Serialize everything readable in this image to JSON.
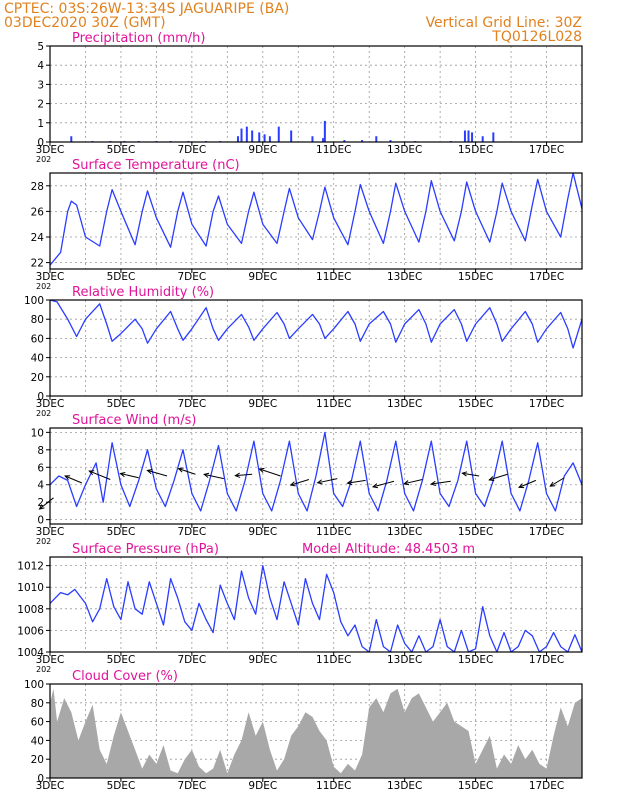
{
  "header": {
    "line1_left": "CPTEC:   03S:26W-13:34S   JAGUARIPE (BA)",
    "line2_left": "03DEC2020 30Z (GMT)",
    "line1_right": "Vertical Grid Line: 30Z",
    "line2_right": "TQ0126L028"
  },
  "colors": {
    "header_orange": "#e0821f",
    "title_magenta": "#e0149a",
    "series_blue": "#2a3dff",
    "cloud_gray": "#a8a8a8",
    "grid_gray": "#9a9a9a"
  },
  "x_axis": {
    "tick_labels": [
      "3DEC",
      "5DEC",
      "7DEC",
      "9DEC",
      "11DEC",
      "13DEC",
      "15DEC",
      "17DEC"
    ],
    "range_days": [
      3,
      18
    ],
    "cropped_year_label": "202"
  },
  "chart_data": [
    {
      "type": "bar",
      "title": "Precipitation (mm/h)",
      "ylim": [
        0,
        5
      ],
      "yticks": [
        "0",
        "1",
        "2",
        "3",
        "4",
        "5"
      ],
      "x": [
        3.6,
        4.2,
        4.7,
        5.1,
        5.5,
        6.0,
        6.4,
        6.9,
        7.4,
        7.8,
        8.3,
        8.4,
        8.55,
        8.7,
        8.9,
        9.05,
        9.2,
        9.45,
        9.8,
        10.4,
        10.7,
        10.75,
        11.3,
        11.8,
        12.2,
        12.6,
        13.3,
        14.3,
        14.7,
        14.8,
        14.9,
        15.2,
        15.5
      ],
      "values": [
        0.3,
        0.05,
        0.05,
        0.05,
        0.05,
        0.05,
        0.05,
        0.05,
        0.05,
        0.05,
        0.3,
        0.7,
        0.8,
        0.6,
        0.5,
        0.4,
        0.3,
        0.8,
        0.6,
        0.3,
        0.2,
        1.1,
        0.1,
        0.1,
        0.3,
        0.1,
        0.05,
        0.05,
        0.6,
        0.6,
        0.5,
        0.3,
        0.5
      ],
      "bar_width_days": 0.03
    },
    {
      "type": "line",
      "title": "Surface Temperature (nC)",
      "ylim": [
        21.5,
        29
      ],
      "yticks": [
        "22",
        "24",
        "26",
        "28"
      ],
      "x": [
        3.0,
        3.3,
        3.5,
        3.6,
        3.75,
        4.0,
        4.4,
        4.6,
        4.75,
        5.0,
        5.4,
        5.6,
        5.75,
        6.0,
        6.4,
        6.6,
        6.75,
        7.0,
        7.4,
        7.6,
        7.75,
        8.0,
        8.4,
        8.6,
        8.75,
        9.0,
        9.4,
        9.6,
        9.75,
        10.0,
        10.4,
        10.6,
        10.75,
        11.0,
        11.4,
        11.6,
        11.75,
        12.0,
        12.4,
        12.6,
        12.75,
        13.0,
        13.4,
        13.6,
        13.75,
        14.0,
        14.4,
        14.6,
        14.75,
        15.0,
        15.4,
        15.6,
        15.75,
        16.0,
        16.4,
        16.6,
        16.75,
        17.0,
        17.4,
        17.6,
        17.75,
        18.0
      ],
      "values": [
        21.8,
        22.8,
        26.0,
        26.8,
        26.5,
        24.0,
        23.3,
        26.0,
        27.7,
        26.0,
        23.4,
        26.0,
        27.6,
        25.5,
        23.2,
        26.0,
        27.5,
        25.0,
        23.3,
        26.0,
        27.2,
        25.0,
        23.5,
        26.0,
        27.5,
        25.0,
        23.5,
        26.0,
        27.8,
        25.5,
        23.8,
        26.0,
        27.9,
        25.5,
        23.4,
        26.0,
        28.1,
        26.0,
        23.5,
        26.0,
        28.2,
        26.0,
        23.6,
        26.0,
        28.4,
        26.0,
        23.7,
        26.0,
        28.3,
        26.0,
        23.6,
        26.0,
        28.2,
        26.0,
        23.7,
        26.5,
        28.5,
        26.0,
        24.0,
        27.0,
        29.0,
        26.2
      ]
    },
    {
      "type": "line",
      "title": "Relative Humidity (%)",
      "ylim": [
        0,
        100
      ],
      "yticks": [
        "0",
        "20",
        "40",
        "60",
        "80",
        "100"
      ],
      "x": [
        3.0,
        3.2,
        3.5,
        3.75,
        4.0,
        4.4,
        4.6,
        4.75,
        5.0,
        5.4,
        5.6,
        5.75,
        6.0,
        6.4,
        6.6,
        6.75,
        7.0,
        7.4,
        7.6,
        7.75,
        8.0,
        8.4,
        8.6,
        8.75,
        9.0,
        9.4,
        9.6,
        9.75,
        10.0,
        10.4,
        10.6,
        10.75,
        11.0,
        11.4,
        11.6,
        11.75,
        12.0,
        12.4,
        12.6,
        12.75,
        13.0,
        13.4,
        13.6,
        13.75,
        14.0,
        14.4,
        14.6,
        14.75,
        15.0,
        15.4,
        15.6,
        15.75,
        16.0,
        16.4,
        16.6,
        16.75,
        17.0,
        17.4,
        17.6,
        17.75,
        18.0
      ],
      "values": [
        100,
        98,
        80,
        62,
        80,
        96,
        75,
        57,
        65,
        80,
        70,
        55,
        70,
        88,
        70,
        58,
        70,
        92,
        70,
        58,
        70,
        85,
        72,
        58,
        70,
        87,
        75,
        60,
        70,
        85,
        75,
        60,
        70,
        88,
        75,
        57,
        75,
        88,
        75,
        56,
        75,
        90,
        75,
        56,
        75,
        90,
        75,
        57,
        75,
        92,
        75,
        57,
        70,
        88,
        75,
        56,
        70,
        87,
        70,
        50,
        80
      ]
    },
    {
      "type": "line",
      "title": "Surface Wind (m/s)",
      "ylim": [
        -0.5,
        10.5
      ],
      "yticks": [
        "0",
        "2",
        "4",
        "6",
        "8",
        "10"
      ],
      "x": [
        3.0,
        3.25,
        3.5,
        3.75,
        4.0,
        4.3,
        4.5,
        4.75,
        5.0,
        5.25,
        5.5,
        5.75,
        6.0,
        6.25,
        6.5,
        6.75,
        7.0,
        7.25,
        7.5,
        7.75,
        8.0,
        8.25,
        8.5,
        8.75,
        9.0,
        9.25,
        9.5,
        9.75,
        10.0,
        10.25,
        10.5,
        10.75,
        11.0,
        11.25,
        11.5,
        11.75,
        12.0,
        12.25,
        12.5,
        12.75,
        13.0,
        13.25,
        13.5,
        13.75,
        14.0,
        14.25,
        14.5,
        14.75,
        15.0,
        15.25,
        15.5,
        15.75,
        16.0,
        16.25,
        16.5,
        16.75,
        17.0,
        17.25,
        17.5,
        17.75,
        18.0
      ],
      "values": [
        4.0,
        5.0,
        4.5,
        1.5,
        4.0,
        6.5,
        2.0,
        8.8,
        4.0,
        1.5,
        4.5,
        8.0,
        3.5,
        1.5,
        4.5,
        8.0,
        3.0,
        1.0,
        4.5,
        8.5,
        3.0,
        1.0,
        4.5,
        9.0,
        3.0,
        1.0,
        4.5,
        9.0,
        3.0,
        1.0,
        5.0,
        10.0,
        3.0,
        1.5,
        4.5,
        9.0,
        3.0,
        1.0,
        4.5,
        9.0,
        3.0,
        1.0,
        4.5,
        9.0,
        3.0,
        1.5,
        4.5,
        9.0,
        3.0,
        1.5,
        4.5,
        9.0,
        3.0,
        1.0,
        4.5,
        8.8,
        3.0,
        1.0,
        5.0,
        6.5,
        4.0
      ],
      "vector_stations_days": [
        3.1,
        3.9,
        4.7,
        5.5,
        6.3,
        7.1,
        7.9,
        8.7,
        9.5,
        10.3,
        11.1,
        11.9,
        12.7,
        13.5,
        14.3,
        15.1,
        15.9,
        16.7,
        17.5
      ],
      "vector_heights": [
        2.5,
        4.2,
        4.6,
        4.8,
        5.0,
        5.2,
        4.7,
        5.2,
        5.0,
        4.6,
        4.7,
        4.5,
        4.4,
        4.6,
        4.4,
        5.0,
        5.2,
        4.5,
        4.8
      ],
      "vector_u": [
        -1.0,
        -1.2,
        -1.5,
        -1.3,
        -1.4,
        -1.2,
        -1.4,
        -1.2,
        -1.5,
        -1.3,
        -1.4,
        -1.3,
        -1.5,
        -1.3,
        -1.4,
        -1.2,
        -1.3,
        -1.2,
        -1.0
      ],
      "vector_v": [
        -0.8,
        0.5,
        0.6,
        0.3,
        0.4,
        0.4,
        0.3,
        -0.1,
        0.5,
        -0.4,
        -0.3,
        -0.2,
        -0.4,
        -0.3,
        -0.2,
        0.2,
        -0.4,
        -0.5,
        -0.6
      ]
    },
    {
      "type": "line",
      "title": "Surface Pressure (hPa)",
      "subtitle": "Model Altitude: 48.4503 m",
      "ylim": [
        1004,
        1012.8
      ],
      "yticks": [
        "1004",
        "1006",
        "1008",
        "1010",
        "1012"
      ],
      "x": [
        3.0,
        3.3,
        3.5,
        3.7,
        4.0,
        4.2,
        4.4,
        4.6,
        4.8,
        5.0,
        5.2,
        5.4,
        5.6,
        5.8,
        6.0,
        6.2,
        6.4,
        6.6,
        6.8,
        7.0,
        7.2,
        7.4,
        7.6,
        7.8,
        8.0,
        8.2,
        8.4,
        8.6,
        8.8,
        9.0,
        9.2,
        9.4,
        9.6,
        9.8,
        10.0,
        10.2,
        10.4,
        10.6,
        10.8,
        11.0,
        11.2,
        11.4,
        11.6,
        11.8,
        12.0,
        12.2,
        12.4,
        12.6,
        12.8,
        13.0,
        13.2,
        13.4,
        13.6,
        13.8,
        14.0,
        14.2,
        14.4,
        14.6,
        14.8,
        15.0,
        15.2,
        15.4,
        15.6,
        15.8,
        16.0,
        16.2,
        16.4,
        16.6,
        16.8,
        17.0,
        17.2,
        17.4,
        17.6,
        17.8,
        18.0
      ],
      "values": [
        1008.5,
        1009.5,
        1009.3,
        1009.8,
        1008.5,
        1006.8,
        1008.0,
        1010.8,
        1008.2,
        1007.0,
        1010.5,
        1008.0,
        1007.5,
        1010.5,
        1008.5,
        1006.5,
        1010.8,
        1009.0,
        1006.8,
        1006.0,
        1008.5,
        1007.0,
        1005.8,
        1010.2,
        1008.5,
        1007.0,
        1011.5,
        1009.0,
        1007.5,
        1012.0,
        1009.0,
        1007.0,
        1010.5,
        1008.5,
        1006.5,
        1010.8,
        1008.5,
        1007.0,
        1011.2,
        1009.5,
        1006.8,
        1005.5,
        1006.5,
        1004.5,
        1004.0,
        1007.0,
        1004.5,
        1004.0,
        1006.5,
        1004.8,
        1004.0,
        1005.5,
        1004.0,
        1004.5,
        1007.0,
        1004.5,
        1004.0,
        1006.0,
        1004.0,
        1004.3,
        1008.2,
        1005.5,
        1004.0,
        1005.8,
        1004.0,
        1004.5,
        1006.0,
        1005.5,
        1004.0,
        1004.5,
        1005.8,
        1004.5,
        1004.0,
        1005.6,
        1004.0
      ]
    },
    {
      "type": "area",
      "title": "Cloud Cover (%)",
      "ylim": [
        0,
        100
      ],
      "yticks": [
        "0",
        "20",
        "40",
        "60",
        "80",
        "100"
      ],
      "x": [
        3.0,
        3.1,
        3.2,
        3.4,
        3.6,
        3.8,
        4.0,
        4.2,
        4.4,
        4.6,
        4.8,
        5.0,
        5.2,
        5.4,
        5.6,
        5.8,
        6.0,
        6.2,
        6.4,
        6.6,
        6.8,
        7.0,
        7.2,
        7.4,
        7.6,
        7.8,
        8.0,
        8.2,
        8.4,
        8.6,
        8.8,
        9.0,
        9.2,
        9.4,
        9.6,
        9.8,
        10.0,
        10.2,
        10.4,
        10.6,
        10.8,
        11.0,
        11.2,
        11.4,
        11.6,
        11.8,
        12.0,
        12.2,
        12.4,
        12.6,
        12.8,
        13.0,
        13.2,
        13.4,
        13.6,
        13.8,
        14.0,
        14.2,
        14.4,
        14.6,
        14.8,
        15.0,
        15.2,
        15.4,
        15.6,
        15.8,
        16.0,
        16.2,
        16.4,
        16.6,
        16.8,
        17.0,
        17.2,
        17.4,
        17.6,
        17.8,
        18.0
      ],
      "values": [
        80,
        95,
        60,
        85,
        70,
        40,
        60,
        78,
        30,
        15,
        45,
        70,
        50,
        30,
        10,
        25,
        15,
        35,
        8,
        5,
        20,
        30,
        12,
        5,
        10,
        30,
        5,
        25,
        40,
        70,
        45,
        60,
        30,
        8,
        20,
        45,
        55,
        70,
        65,
        50,
        40,
        12,
        5,
        15,
        8,
        25,
        75,
        85,
        70,
        90,
        95,
        70,
        85,
        90,
        75,
        60,
        70,
        80,
        60,
        55,
        50,
        15,
        30,
        45,
        10,
        25,
        15,
        35,
        20,
        30,
        15,
        10,
        45,
        75,
        55,
        80,
        85
      ]
    }
  ]
}
